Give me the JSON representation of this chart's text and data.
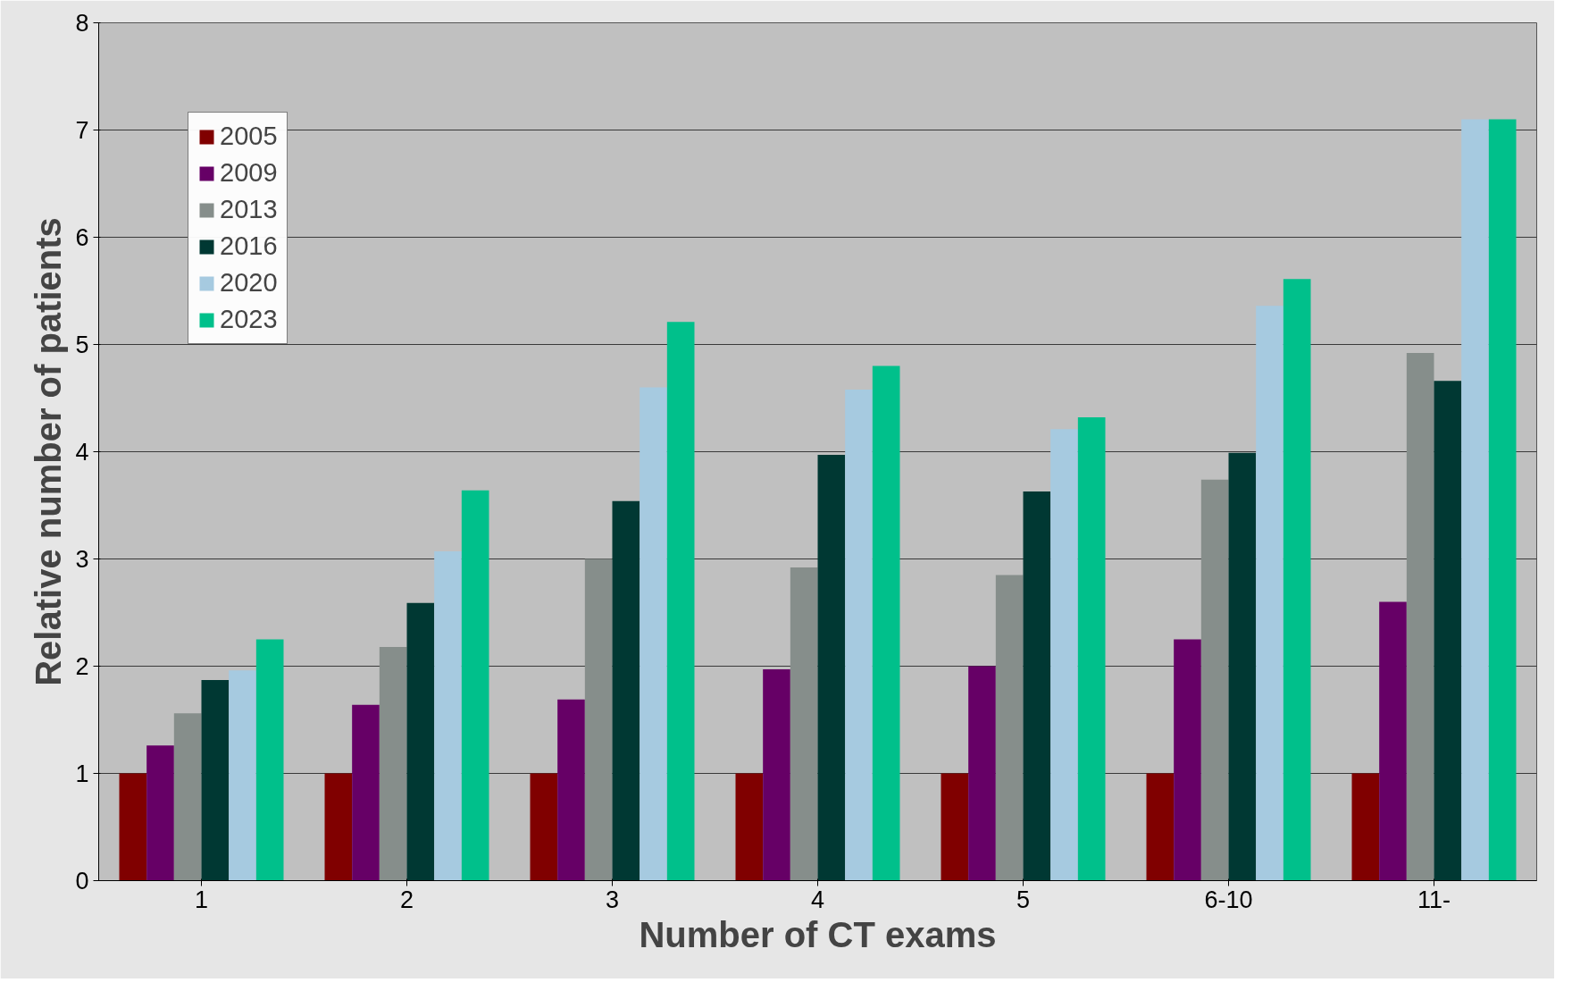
{
  "chart_data": {
    "type": "bar",
    "xlabel": "Number of CT exams",
    "ylabel": "Relative number of patients",
    "categories": [
      "1",
      "2",
      "3",
      "4",
      "5",
      "6-10",
      "11-"
    ],
    "series": [
      {
        "name": "2005",
        "color": "#800000",
        "values": [
          1.0,
          1.0,
          1.0,
          1.0,
          1.0,
          1.0,
          1.0
        ]
      },
      {
        "name": "2009",
        "color": "#660066",
        "values": [
          1.26,
          1.64,
          1.69,
          1.97,
          2.0,
          2.25,
          2.6
        ]
      },
      {
        "name": "2013",
        "color": "#868e8b",
        "values": [
          1.56,
          2.18,
          3.0,
          2.92,
          2.85,
          3.74,
          4.92
        ]
      },
      {
        "name": "2016",
        "color": "#003833",
        "values": [
          1.87,
          2.59,
          3.54,
          3.97,
          3.63,
          3.99,
          4.66
        ]
      },
      {
        "name": "2020",
        "color": "#a6cae0",
        "values": [
          1.96,
          3.07,
          4.6,
          4.58,
          4.21,
          5.36,
          7.1
        ]
      },
      {
        "name": "2023",
        "color": "#00c08b",
        "values": [
          2.25,
          3.64,
          5.21,
          4.8,
          4.32,
          5.61,
          7.1
        ]
      }
    ],
    "ylim": [
      0,
      8
    ],
    "yticks": [
      0,
      1,
      2,
      3,
      4,
      5,
      6,
      7,
      8
    ],
    "grid": "y",
    "legend": "top left"
  }
}
